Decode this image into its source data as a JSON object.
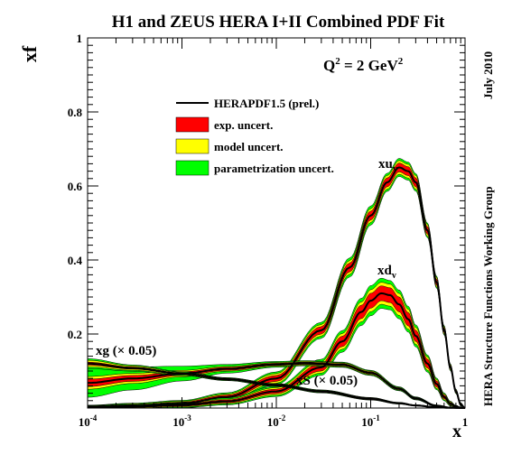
{
  "chart_data": {
    "type": "line",
    "title": "H1 and ZEUS HERA I+II Combined PDF Fit",
    "xlabel": "x",
    "ylabel": "xf",
    "x_scale": "log",
    "xlim": [
      0.0001,
      1
    ],
    "ylim": [
      0,
      1
    ],
    "y_ticks": [
      "0.2",
      "0.4",
      "0.6",
      "0.8",
      "1"
    ],
    "x_ticks": [
      {
        "mant": "10",
        "exp": "-4"
      },
      {
        "mant": "10",
        "exp": "-3"
      },
      {
        "mant": "10",
        "exp": "-2"
      },
      {
        "mant": "10",
        "exp": "-1"
      },
      {
        "mant": "1",
        "exp": ""
      }
    ],
    "scale_label": {
      "pre": "Q",
      "sup1": "2",
      "mid": " = 2 GeV",
      "sup2": "2"
    },
    "right_labels": {
      "date": "July 2010",
      "group": "HERA Structure Functions Working Group"
    },
    "legend": {
      "entries": [
        {
          "label": "HERAPDF1.5 (prel.)",
          "kind": "line",
          "color": "#000000"
        },
        {
          "label": "exp. uncert.",
          "kind": "box",
          "color": "#ff0000"
        },
        {
          "label": "model uncert.",
          "kind": "box",
          "color": "#ffff00"
        },
        {
          "label": "parametrization uncert.",
          "kind": "box",
          "color": "#00ff00"
        }
      ]
    },
    "band_colors": {
      "exp": "#ff0000",
      "model": "#ffff00",
      "param": "#00ff00"
    },
    "series": [
      {
        "name": "xu_v",
        "label_main": "xu",
        "label_sub": "v",
        "x": [
          0.0001,
          0.0003,
          0.001,
          0.003,
          0.01,
          0.03,
          0.06,
          0.1,
          0.15,
          0.2,
          0.25,
          0.3,
          0.4,
          0.5,
          0.6,
          0.7,
          0.8,
          0.9,
          1
        ],
        "values": [
          0.003,
          0.006,
          0.012,
          0.03,
          0.08,
          0.21,
          0.38,
          0.52,
          0.61,
          0.65,
          0.64,
          0.61,
          0.48,
          0.34,
          0.21,
          0.11,
          0.045,
          0.01,
          0
        ],
        "exp_unc": [
          0.002,
          0.003,
          0.004,
          0.005,
          0.008,
          0.01,
          0.012,
          0.012,
          0.012,
          0.012,
          0.012,
          0.012,
          0.01,
          0.008,
          0.006,
          0.004,
          0.003,
          0.002,
          0
        ],
        "model_unc": [
          0.003,
          0.004,
          0.005,
          0.006,
          0.01,
          0.012,
          0.014,
          0.014,
          0.014,
          0.014,
          0.014,
          0.014,
          0.012,
          0.01,
          0.008,
          0.006,
          0.004,
          0.003,
          0
        ],
        "param_unc": [
          0.003,
          0.005,
          0.006,
          0.008,
          0.012,
          0.015,
          0.018,
          0.018,
          0.016,
          0.016,
          0.016,
          0.015,
          0.012,
          0.01,
          0.008,
          0.006,
          0.004,
          0.003,
          0
        ]
      },
      {
        "name": "xd_v",
        "label_main": "xd",
        "label_sub": "v",
        "x": [
          0.0001,
          0.0003,
          0.001,
          0.003,
          0.01,
          0.03,
          0.05,
          0.08,
          0.1,
          0.13,
          0.16,
          0.2,
          0.25,
          0.3,
          0.4,
          0.5,
          0.6,
          0.7,
          0.8,
          0.9,
          1
        ],
        "values": [
          0.002,
          0.004,
          0.008,
          0.018,
          0.045,
          0.11,
          0.18,
          0.26,
          0.29,
          0.31,
          0.305,
          0.28,
          0.24,
          0.195,
          0.12,
          0.065,
          0.03,
          0.012,
          0.004,
          0.001,
          0
        ],
        "exp_unc": [
          0.002,
          0.002,
          0.003,
          0.004,
          0.006,
          0.01,
          0.014,
          0.018,
          0.02,
          0.02,
          0.02,
          0.02,
          0.018,
          0.015,
          0.012,
          0.008,
          0.005,
          0.003,
          0.002,
          0.001,
          0
        ],
        "model_unc": [
          0.002,
          0.003,
          0.004,
          0.005,
          0.008,
          0.012,
          0.016,
          0.02,
          0.022,
          0.022,
          0.022,
          0.022,
          0.02,
          0.017,
          0.013,
          0.009,
          0.006,
          0.004,
          0.002,
          0.001,
          0
        ],
        "param_unc": [
          0.003,
          0.004,
          0.005,
          0.007,
          0.01,
          0.015,
          0.02,
          0.025,
          0.028,
          0.028,
          0.026,
          0.025,
          0.022,
          0.019,
          0.015,
          0.01,
          0.007,
          0.004,
          0.002,
          0.001,
          0
        ]
      },
      {
        "name": "xg (x 0.05)",
        "label_main": "xg (",
        "label_times": "×",
        "label_tail": " 0.05)",
        "x": [
          0.0001,
          0.0003,
          0.001,
          0.003,
          0.01,
          0.02,
          0.05,
          0.1,
          0.2,
          0.3,
          0.5,
          0.7,
          1
        ],
        "values": [
          0.068,
          0.08,
          0.093,
          0.106,
          0.118,
          0.121,
          0.117,
          0.095,
          0.052,
          0.026,
          0.006,
          0.001,
          0
        ],
        "exp_unc": [
          0.01,
          0.008,
          0.005,
          0.004,
          0.003,
          0.003,
          0.003,
          0.003,
          0.002,
          0.002,
          0.001,
          0.001,
          0
        ],
        "model_unc": [
          0.014,
          0.011,
          0.007,
          0.005,
          0.004,
          0.004,
          0.004,
          0.004,
          0.003,
          0.002,
          0.001,
          0.001,
          0
        ],
        "param_unc": [
          0.035,
          0.028,
          0.018,
          0.01,
          0.006,
          0.005,
          0.005,
          0.005,
          0.004,
          0.003,
          0.002,
          0.001,
          0
        ]
      },
      {
        "name": "xS (x 0.05)",
        "label_main": "xS (",
        "label_times": "×",
        "label_tail": " 0.05)",
        "x": [
          0.0001,
          0.0003,
          0.001,
          0.003,
          0.01,
          0.03,
          0.1,
          0.2,
          0.3,
          0.5,
          0.7,
          1
        ],
        "values": [
          0.12,
          0.108,
          0.093,
          0.078,
          0.062,
          0.045,
          0.025,
          0.013,
          0.007,
          0.002,
          0.0005,
          0
        ],
        "exp_unc": [
          0.004,
          0.003,
          0.002,
          0.002,
          0.002,
          0.002,
          0.002,
          0.001,
          0.001,
          0.001,
          0,
          0
        ],
        "model_unc": [
          0.008,
          0.005,
          0.003,
          0.002,
          0.002,
          0.002,
          0.002,
          0.001,
          0.001,
          0.001,
          0,
          0
        ],
        "param_unc": [
          0.01,
          0.006,
          0.004,
          0.003,
          0.003,
          0.003,
          0.002,
          0.002,
          0.001,
          0.001,
          0,
          0
        ]
      }
    ]
  }
}
